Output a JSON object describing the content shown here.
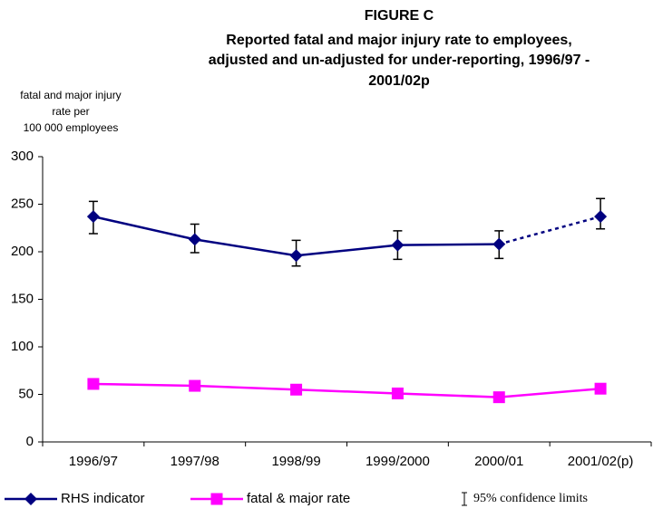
{
  "chart_data": {
    "type": "line",
    "title": "FIGURE C",
    "subtitle_lines": [
      "Reported fatal and major injury rate to employees,",
      "adjusted and un-adjusted for under-reporting, 1996/97 -",
      "2001/02p"
    ],
    "y_label_lines": [
      "fatal and major injury",
      "rate per",
      "100 000 employees"
    ],
    "categories": [
      "1996/97",
      "1997/98",
      "1998/99",
      "1999/2000",
      "2000/01",
      "2001/02(p)"
    ],
    "series": [
      {
        "name": "RHS indicator",
        "color": "#000080",
        "marker": "diamond",
        "values": [
          237,
          213,
          196,
          207,
          208,
          237
        ],
        "error_low": [
          219,
          199,
          185,
          192,
          193,
          224
        ],
        "error_high": [
          253,
          229,
          212,
          222,
          222,
          256
        ],
        "dashed_segments": [
          4
        ]
      },
      {
        "name": "fatal & major rate",
        "color": "#ff00ff",
        "marker": "square",
        "values": [
          61,
          59,
          55,
          51,
          47,
          56
        ]
      }
    ],
    "error_legend": "95% confidence limits",
    "ylim": [
      0,
      300
    ],
    "yticks": [
      0,
      50,
      100,
      150,
      200,
      250,
      300
    ],
    "grid": false
  }
}
